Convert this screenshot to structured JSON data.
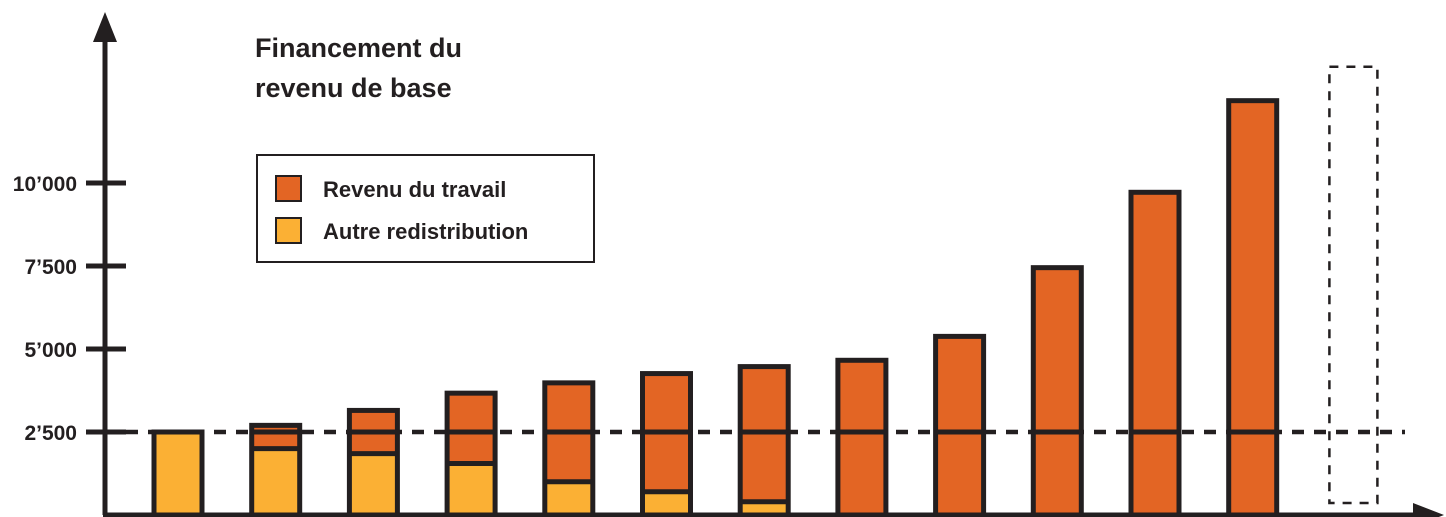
{
  "chart_data": {
    "type": "bar",
    "stacked": true,
    "title_lines": [
      "Financement du",
      "revenu de base"
    ],
    "xlabel": "",
    "ylabel": "",
    "ylim": [
      0,
      12500
    ],
    "yticks": [
      2500,
      5000,
      7500,
      10000
    ],
    "ytick_labels": [
      "2’500",
      "5’000",
      "7’500",
      "10’000"
    ],
    "categories": [
      "",
      "",
      "",
      "",
      "",
      "",
      "",
      "",
      "",
      "",
      "",
      ""
    ],
    "series": [
      {
        "name": "Autre redistribution",
        "color": "#fbb034",
        "values": [
          2500,
          2000,
          1850,
          1550,
          1000,
          700,
          400,
          0,
          0,
          0,
          0,
          0
        ]
      },
      {
        "name": "Revenu du travail",
        "color": "#e36524",
        "values": [
          0,
          700,
          1300,
          2120,
          2980,
          3560,
          4070,
          4660,
          5380,
          7450,
          9720,
          12480
        ]
      }
    ],
    "subsegment_divider_at": 2500,
    "reference_line": {
      "value": 2500,
      "style": "dashed"
    },
    "placeholder_bar": {
      "value": 13500,
      "style": "dashed-outline"
    },
    "legend": {
      "position": "upper-left",
      "entries": [
        "Revenu du travail",
        "Autre redistribution"
      ]
    },
    "grid": false
  }
}
